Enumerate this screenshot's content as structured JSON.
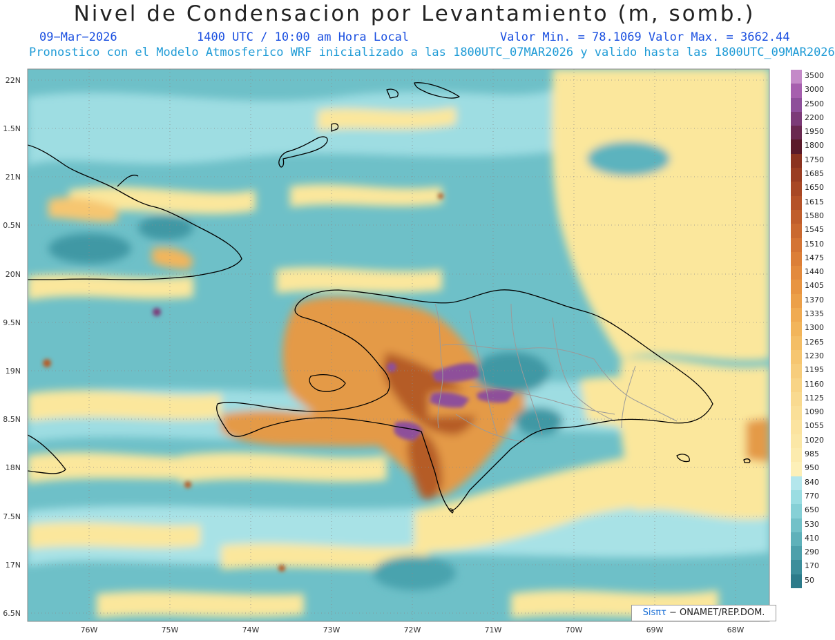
{
  "header": {
    "title": "Nivel de Condensacion por Levantamiento (m, somb.)",
    "date": "09−Mar−2026",
    "time": "1400 UTC / 10:00 am Hora Local",
    "valor_min_max": "Valor Min. = 78.1069   Valor Max. = 3662.44",
    "subtitle": "Pronostico con el Modelo Atmosferico WRF inicializado a las 1800UTC_07MAR2026 y valido hasta las  1800UTC_09MAR2026"
  },
  "map": {
    "lon_range": [
      -76.75,
      -67.55
    ],
    "lat_range": [
      6.35,
      22.15
    ],
    "lat_ticks": [
      "22N",
      "1.5N",
      "21N",
      "0.5N",
      "20N",
      "9.5N",
      "19N",
      "8.5N",
      "18N",
      "7.5N",
      "17N",
      "6.5N"
    ],
    "lon_ticks": [
      "76W",
      "75W",
      "74W",
      "73W",
      "72W",
      "71W",
      "70W",
      "69W",
      "68W"
    ],
    "colors": {
      "teal_dark": "#2e8a96",
      "teal": "#5cb3be",
      "teal_light": "#9edde2",
      "yellow": "#fbe79c",
      "orange": "#e49a47",
      "brown": "#b55c28",
      "purple": "#8e4f9a",
      "coast": "#000000",
      "provinces": "#9a9a9a"
    }
  },
  "legend": {
    "levels": [
      {
        "label": "3500",
        "color": "#c48ac8"
      },
      {
        "label": "3000",
        "color": "#a65fae"
      },
      {
        "label": "2500",
        "color": "#8e4f9a"
      },
      {
        "label": "2200",
        "color": "#7c3b78"
      },
      {
        "label": "1950",
        "color": "#6a2850"
      },
      {
        "label": "1800",
        "color": "#5a1a2a"
      },
      {
        "label": "1750",
        "color": "#8b3320"
      },
      {
        "label": "1685",
        "color": "#9a3d22"
      },
      {
        "label": "1650",
        "color": "#a84825"
      },
      {
        "label": "1615",
        "color": "#b55228"
      },
      {
        "label": "1580",
        "color": "#c05e2c"
      },
      {
        "label": "1545",
        "color": "#ca6930"
      },
      {
        "label": "1510",
        "color": "#d47434"
      },
      {
        "label": "1475",
        "color": "#dc7f38"
      },
      {
        "label": "1440",
        "color": "#e38a3d"
      },
      {
        "label": "1405",
        "color": "#e89542"
      },
      {
        "label": "1370",
        "color": "#eca049"
      },
      {
        "label": "1335",
        "color": "#f0ab52"
      },
      {
        "label": "1300",
        "color": "#f2b55b"
      },
      {
        "label": "1265",
        "color": "#f4be66"
      },
      {
        "label": "1230",
        "color": "#f6c671"
      },
      {
        "label": "1195",
        "color": "#f7cd7c"
      },
      {
        "label": "1160",
        "color": "#f8d486"
      },
      {
        "label": "1125",
        "color": "#f9da90"
      },
      {
        "label": "1090",
        "color": "#fadf98"
      },
      {
        "label": "1055",
        "color": "#fbe39f"
      },
      {
        "label": "1020",
        "color": "#fbe7a6"
      },
      {
        "label": "985",
        "color": "#fcebae"
      },
      {
        "label": "950",
        "color": "#fdf0b8"
      },
      {
        "label": "840",
        "color": "#b3e6ec"
      },
      {
        "label": "770",
        "color": "#9adde2"
      },
      {
        "label": "650",
        "color": "#86d0d6"
      },
      {
        "label": "530",
        "color": "#72c1c8"
      },
      {
        "label": "410",
        "color": "#5fb1ba"
      },
      {
        "label": "290",
        "color": "#4da0ab"
      },
      {
        "label": "170",
        "color": "#3c8e9b"
      },
      {
        "label": "50",
        "color": "#2c7b8a"
      }
    ]
  },
  "credit": {
    "brand": "Sisπτ",
    "text": " − ONAMET/REP.DOM."
  }
}
